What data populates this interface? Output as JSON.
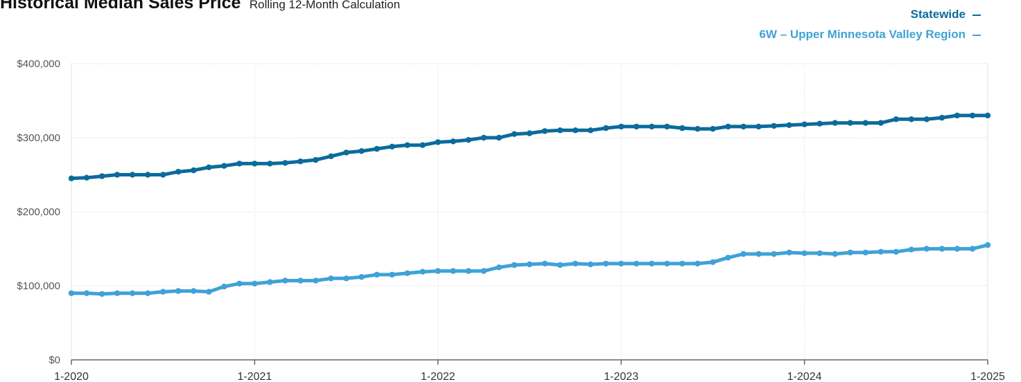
{
  "chart_data": {
    "type": "line",
    "title": "Historical Median Sales Price",
    "subtitle": "Rolling 12-Month Calculation",
    "xlabel": "",
    "ylabel": "",
    "ylim": [
      0,
      400000
    ],
    "yticks": [
      {
        "value": 0,
        "label": "$0"
      },
      {
        "value": 100000,
        "label": "$100,000"
      },
      {
        "value": 200000,
        "label": "$200,000"
      },
      {
        "value": 300000,
        "label": "$300,000"
      },
      {
        "value": 400000,
        "label": "$400,000"
      }
    ],
    "xticks": [
      "1-2020",
      "1-2021",
      "1-2022",
      "1-2023",
      "1-2024",
      "1-2025"
    ],
    "grid": true,
    "legend_position": "top-right",
    "series": [
      {
        "name": "Statewide",
        "color": "#0b6b9c",
        "values": [
          245000,
          246000,
          248000,
          250000,
          250000,
          250000,
          250000,
          254000,
          256000,
          260000,
          262000,
          265000,
          265000,
          265000,
          266000,
          268000,
          270000,
          275000,
          280000,
          282000,
          285000,
          288000,
          290000,
          290000,
          294000,
          295000,
          297000,
          300000,
          300000,
          305000,
          306000,
          309000,
          310000,
          310000,
          310000,
          313000,
          315000,
          315000,
          315000,
          315000,
          313000,
          312000,
          312000,
          315000,
          315000,
          315000,
          316000,
          317000,
          318000,
          319000,
          320000,
          320000,
          320000,
          320000,
          325000,
          325000,
          325000,
          327000,
          330000,
          330000,
          330000
        ]
      },
      {
        "name": "6W – Upper Minnesota Valley Region",
        "color": "#3fa2d6",
        "values": [
          90000,
          90000,
          89000,
          90000,
          90000,
          90000,
          92000,
          93000,
          93000,
          92000,
          99000,
          103000,
          103000,
          105000,
          107000,
          107000,
          107000,
          110000,
          110000,
          112000,
          115000,
          115000,
          117000,
          119000,
          120000,
          120000,
          120000,
          120000,
          125000,
          128000,
          129000,
          130000,
          128000,
          130000,
          129000,
          130000,
          130000,
          130000,
          130000,
          130000,
          130000,
          130000,
          132000,
          138000,
          143000,
          143000,
          143000,
          145000,
          144000,
          144000,
          143000,
          145000,
          145000,
          146000,
          146000,
          149000,
          150000,
          150000,
          150000,
          150000,
          155000
        ]
      }
    ]
  }
}
